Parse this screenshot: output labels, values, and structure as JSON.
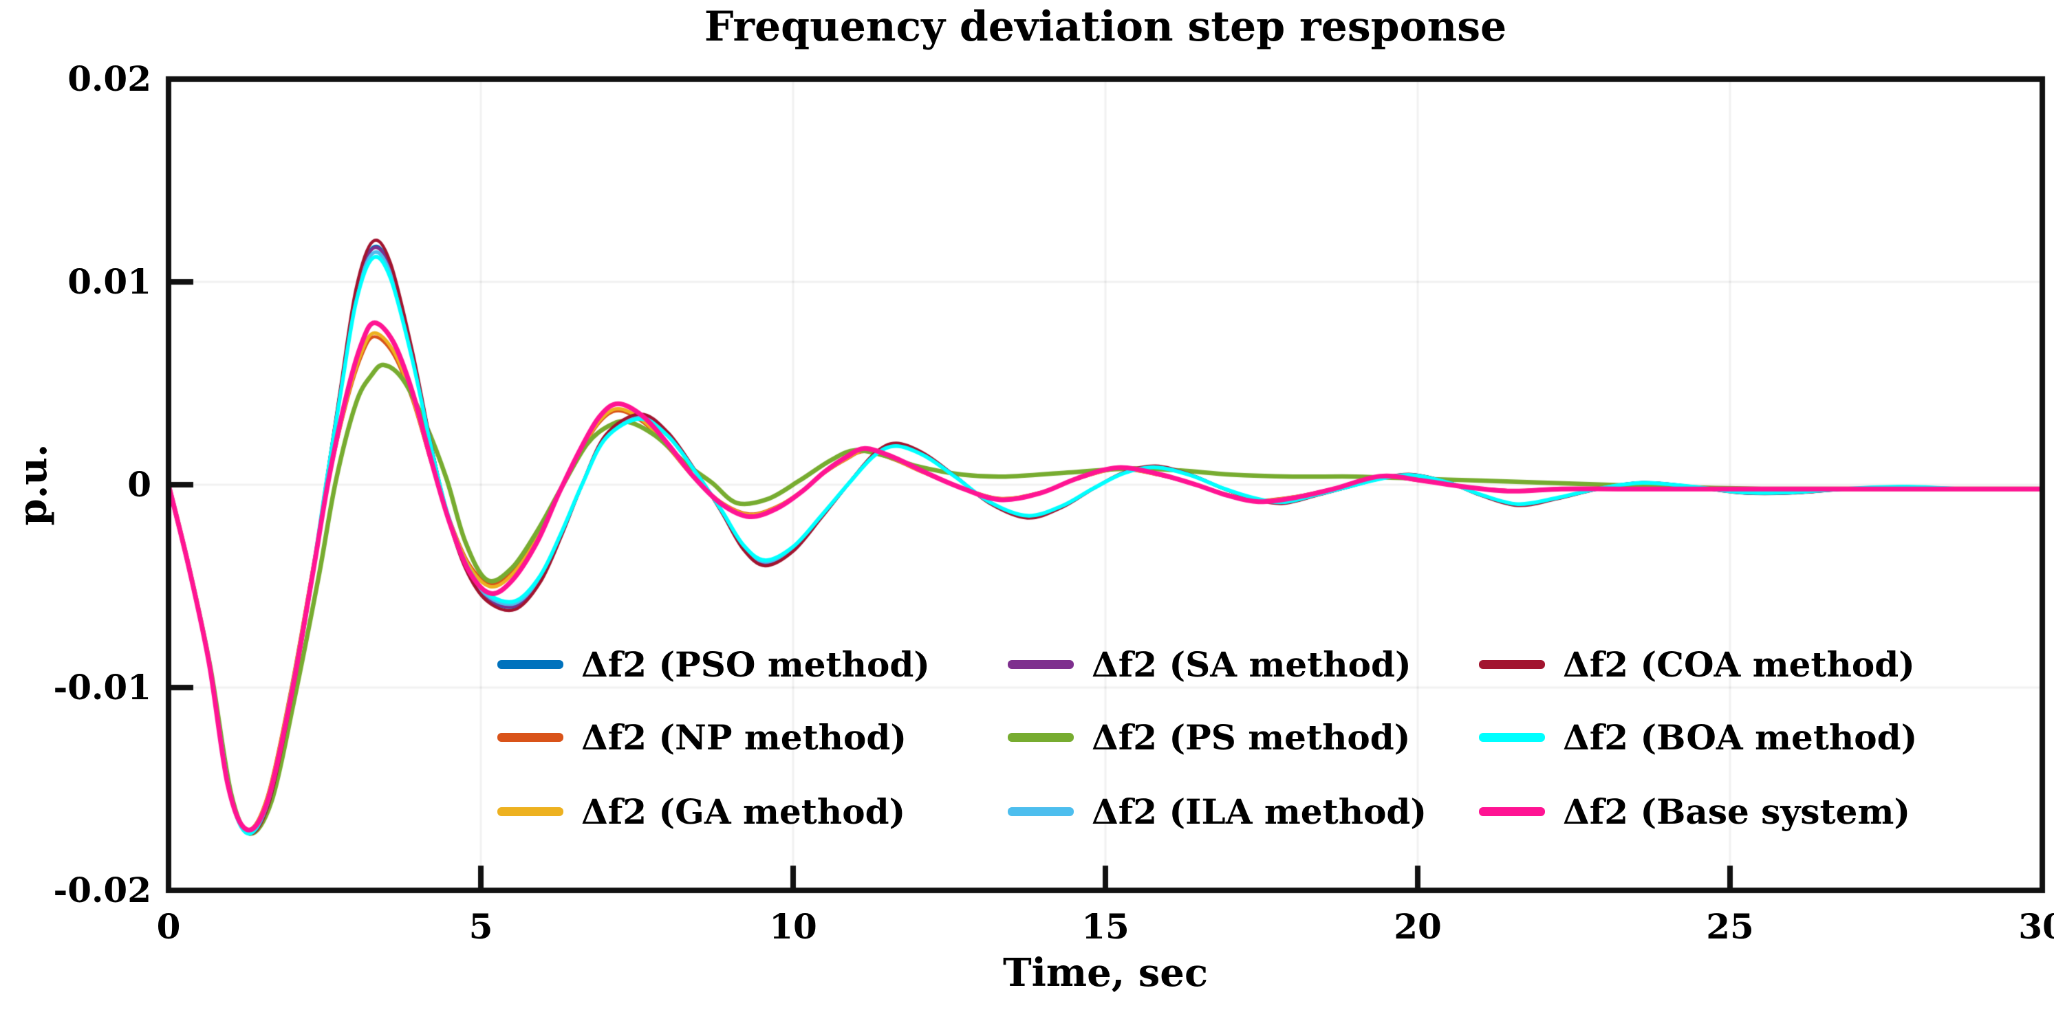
{
  "chart_data": {
    "type": "line",
    "title": "Frequency deviation step response",
    "xlabel": "Time, sec",
    "ylabel": "p.u.",
    "xlim": [
      0,
      30
    ],
    "ylim": [
      -0.02,
      0.02
    ],
    "grid": true,
    "x_ticks": [
      0,
      5,
      10,
      15,
      20,
      25,
      30
    ],
    "x_tick_labels": [
      "0",
      "5",
      "10",
      "15",
      "20",
      "25",
      "30"
    ],
    "y_ticks": [
      0.02,
      0.01,
      0,
      -0.01,
      -0.02
    ],
    "y_tick_labels": [
      "0.02",
      "0.01",
      "0",
      "-0.01",
      "-0.02"
    ],
    "legend_position": "inside lower-center, 3 columns, no box",
    "families": {
      "A": [
        [
          0,
          0
        ],
        [
          0.32,
          -0.004
        ],
        [
          0.65,
          -0.0088
        ],
        [
          0.97,
          -0.015
        ],
        [
          1.27,
          -0.0172
        ],
        [
          1.6,
          -0.0157
        ],
        [
          1.95,
          -0.0107
        ],
        [
          2.3,
          -0.0046
        ],
        [
          2.52,
          0
        ],
        [
          2.75,
          0.0046
        ],
        [
          3.0,
          0.0094
        ],
        [
          3.27,
          0.0117
        ],
        [
          3.55,
          0.0107
        ],
        [
          3.9,
          0.0065
        ],
        [
          4.2,
          0.002
        ],
        [
          4.45,
          -0.0013
        ],
        [
          4.75,
          -0.004
        ],
        [
          5.1,
          -0.0056
        ],
        [
          5.55,
          -0.006
        ],
        [
          5.95,
          -0.0047
        ],
        [
          6.3,
          -0.0024
        ],
        [
          6.62,
          0
        ],
        [
          7.0,
          0.0024
        ],
        [
          7.55,
          0.0034
        ],
        [
          8.0,
          0.0025
        ],
        [
          8.45,
          0.0006
        ],
        [
          8.85,
          -0.0013
        ],
        [
          9.2,
          -0.0031
        ],
        [
          9.55,
          -0.0039
        ],
        [
          10.0,
          -0.0032
        ],
        [
          10.45,
          -0.0016
        ],
        [
          10.9,
          0.0001
        ],
        [
          11.3,
          0.0015
        ],
        [
          11.65,
          0.002
        ],
        [
          12.1,
          0.0015
        ],
        [
          12.6,
          0.0004
        ],
        [
          13.15,
          -0.0009
        ],
        [
          13.75,
          -0.0016
        ],
        [
          14.3,
          -0.0011
        ],
        [
          14.8,
          -0.0002
        ],
        [
          15.3,
          0.0006
        ],
        [
          15.8,
          0.0009
        ],
        [
          16.35,
          0.0005
        ],
        [
          16.9,
          -0.0002
        ],
        [
          17.4,
          -0.0007
        ],
        [
          17.85,
          -0.0009
        ],
        [
          18.4,
          -0.0005
        ],
        [
          18.9,
          -0.0001
        ],
        [
          19.4,
          0.0003
        ],
        [
          19.9,
          0.0005
        ],
        [
          20.5,
          0.0001
        ],
        [
          21.0,
          -0.0005
        ],
        [
          21.6,
          -0.001
        ],
        [
          22.2,
          -0.0007
        ],
        [
          22.9,
          -0.0002
        ],
        [
          23.6,
          0.0001
        ],
        [
          24.4,
          -0.0001
        ],
        [
          25.2,
          -0.0004
        ],
        [
          26.0,
          -0.0004
        ],
        [
          26.9,
          -0.0002
        ],
        [
          27.8,
          -0.0001
        ],
        [
          28.6,
          -0.0002
        ],
        [
          29.3,
          -0.0002
        ],
        [
          30,
          -0.0002
        ]
      ],
      "B": [
        [
          0,
          0
        ],
        [
          0.32,
          -0.004
        ],
        [
          0.65,
          -0.0088
        ],
        [
          0.95,
          -0.0148
        ],
        [
          1.25,
          -0.017
        ],
        [
          1.58,
          -0.0155
        ],
        [
          1.95,
          -0.0104
        ],
        [
          2.3,
          -0.0044
        ],
        [
          2.56,
          0.0002
        ],
        [
          2.85,
          0.0042
        ],
        [
          3.1,
          0.0067
        ],
        [
          3.3,
          0.0076
        ],
        [
          3.6,
          0.0067
        ],
        [
          3.9,
          0.0044
        ],
        [
          4.2,
          0.0012
        ],
        [
          4.48,
          -0.0016
        ],
        [
          4.8,
          -0.004
        ],
        [
          5.15,
          -0.0051
        ],
        [
          5.5,
          -0.0045
        ],
        [
          5.9,
          -0.0027
        ],
        [
          6.25,
          -0.0004
        ],
        [
          6.6,
          0.0017
        ],
        [
          6.9,
          0.0032
        ],
        [
          7.2,
          0.0038
        ],
        [
          7.6,
          0.0032
        ],
        [
          8.0,
          0.0019
        ],
        [
          8.4,
          0.0004
        ],
        [
          8.85,
          -0.0009
        ],
        [
          9.3,
          -0.0015
        ],
        [
          9.75,
          -0.0011
        ],
        [
          10.15,
          -0.0003
        ],
        [
          10.5,
          0.0006
        ],
        [
          10.85,
          0.0013
        ],
        [
          11.15,
          0.0017
        ],
        [
          11.6,
          0.0013
        ],
        [
          12.1,
          0.0006
        ],
        [
          12.65,
          -0.0001
        ],
        [
          13.3,
          -0.0007
        ],
        [
          13.95,
          -0.0004
        ],
        [
          14.55,
          0.0003
        ],
        [
          15.2,
          0.0008
        ],
        [
          15.85,
          0.0005
        ],
        [
          16.45,
          0
        ],
        [
          16.95,
          -0.0005
        ],
        [
          17.45,
          -0.0008
        ],
        [
          18.05,
          -0.0006
        ],
        [
          18.65,
          -0.0002
        ],
        [
          19.4,
          0.0004
        ],
        [
          20.05,
          0.0002
        ],
        [
          20.75,
          -0.0001
        ],
        [
          21.5,
          -0.0003
        ],
        [
          22.3,
          -0.0002
        ],
        [
          23.2,
          -0.0002
        ],
        [
          24.2,
          -0.0002
        ],
        [
          25.2,
          -0.0002
        ],
        [
          26.2,
          -0.0002
        ],
        [
          27.2,
          -0.0002
        ],
        [
          28.2,
          -0.0002
        ],
        [
          29.1,
          -0.0002
        ],
        [
          30,
          -0.0002
        ]
      ],
      "C": [
        [
          0,
          0
        ],
        [
          0.33,
          -0.0041
        ],
        [
          0.67,
          -0.009
        ],
        [
          1.0,
          -0.0152
        ],
        [
          1.3,
          -0.0172
        ],
        [
          1.65,
          -0.0156
        ],
        [
          2.0,
          -0.0108
        ],
        [
          2.4,
          -0.0046
        ],
        [
          2.68,
          0.0002
        ],
        [
          3.0,
          0.004
        ],
        [
          3.25,
          0.0054
        ],
        [
          3.45,
          0.0059
        ],
        [
          3.75,
          0.0052
        ],
        [
          4.1,
          0.0031
        ],
        [
          4.45,
          0.0003
        ],
        [
          4.75,
          -0.0028
        ],
        [
          5.1,
          -0.0047
        ],
        [
          5.5,
          -0.0041
        ],
        [
          5.9,
          -0.0023
        ],
        [
          6.3,
          -0.0001
        ],
        [
          6.7,
          0.002
        ],
        [
          7.05,
          0.0029
        ],
        [
          7.35,
          0.0031
        ],
        [
          7.8,
          0.0024
        ],
        [
          8.3,
          0.001
        ],
        [
          8.7,
          0.0001
        ],
        [
          9.1,
          -0.0009
        ],
        [
          9.6,
          -0.0007
        ],
        [
          10.1,
          0.0002
        ],
        [
          10.6,
          0.0012
        ],
        [
          11.0,
          0.0017
        ],
        [
          11.5,
          0.0014
        ],
        [
          12.0,
          0.0009
        ],
        [
          12.7,
          0.0005
        ],
        [
          13.4,
          0.0004
        ],
        [
          14.4,
          0.0006
        ],
        [
          15.4,
          0.0008
        ],
        [
          16.2,
          0.0007
        ],
        [
          17.0,
          0.0005
        ],
        [
          18.0,
          0.0004
        ],
        [
          19.0,
          0.0004
        ],
        [
          20.0,
          0.0003
        ],
        [
          21.0,
          0.0002
        ],
        [
          22.0,
          0.0001
        ],
        [
          23.0,
          0
        ],
        [
          24.0,
          -0.0001
        ],
        [
          25.5,
          -0.0002
        ],
        [
          27.0,
          -0.0002
        ],
        [
          28.5,
          -0.0002
        ],
        [
          30,
          -0.0002
        ]
      ]
    },
    "series": [
      {
        "name": "pso",
        "label": "Δf2 (PSO method)",
        "color": "#0072BD",
        "family": "A",
        "amp": 1.0,
        "width": 4.5
      },
      {
        "name": "np",
        "label": "Δf2 (NP method)",
        "color": "#D95319",
        "family": "B",
        "amp": 0.96,
        "width": 4.5
      },
      {
        "name": "ga",
        "label": "Δf2 (GA method)",
        "color": "#EDB120",
        "family": "B",
        "amp": 0.985,
        "width": 5
      },
      {
        "name": "sa",
        "label": "Δf2 (SA method)",
        "color": "#7E2F8E",
        "family": "A",
        "amp": 0.995,
        "width": 4.5
      },
      {
        "name": "ps",
        "label": "Δf2 (PS method)",
        "color": "#77AC30",
        "family": "C",
        "amp": 1.0,
        "width": 6.5
      },
      {
        "name": "ila",
        "label": "Δf2 (ILA method)",
        "color": "#4DBEEE",
        "family": "A",
        "amp": 0.975,
        "width": 5
      },
      {
        "name": "coa",
        "label": "Δf2 (COA method)",
        "color": "#A2142F",
        "family": "A",
        "amp": 1.025,
        "width": 4.5
      },
      {
        "name": "boa",
        "label": "Δf2 (BOA method)",
        "color": "#00FFFF",
        "family": "A",
        "amp": 0.955,
        "width": 5.5
      },
      {
        "name": "base",
        "label": "Δf2 (Base system)",
        "color": "#FF1493",
        "family": "B",
        "amp": 1.05,
        "width": 7
      }
    ],
    "legend_columns": [
      [
        "pso",
        "np",
        "ga"
      ],
      [
        "sa",
        "ps",
        "ila"
      ],
      [
        "coa",
        "boa",
        "base"
      ]
    ],
    "axis_color": "#111111",
    "grid_color": "rgba(0,0,0,0.055)"
  }
}
